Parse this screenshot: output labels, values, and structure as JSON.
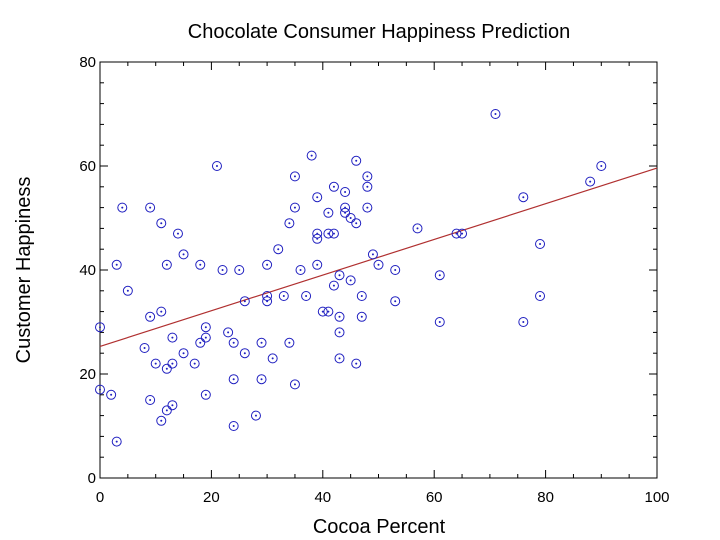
{
  "chart_data": {
    "type": "scatter",
    "title": "Chocolate Consumer Happiness Prediction",
    "xlabel": "Cocoa Percent",
    "ylabel": "Customer Happiness",
    "xlim": [
      0,
      100
    ],
    "ylim": [
      0,
      80
    ],
    "xticks": [
      0,
      20,
      40,
      60,
      80,
      100
    ],
    "yticks": [
      0,
      20,
      40,
      60,
      80
    ],
    "grid": false,
    "legend": "none",
    "series": [
      {
        "color": "#2020c0",
        "marker": "circle-dot",
        "points": [
          [
            0,
            29
          ],
          [
            0,
            17
          ],
          [
            2,
            16
          ],
          [
            3,
            41
          ],
          [
            3,
            7
          ],
          [
            4,
            52
          ],
          [
            5,
            36
          ],
          [
            8,
            25
          ],
          [
            9,
            52
          ],
          [
            9,
            31
          ],
          [
            9,
            15
          ],
          [
            10,
            22
          ],
          [
            11,
            49
          ],
          [
            11,
            32
          ],
          [
            11,
            11
          ],
          [
            12,
            41
          ],
          [
            12,
            21
          ],
          [
            12,
            13
          ],
          [
            13,
            27
          ],
          [
            13,
            22
          ],
          [
            13,
            14
          ],
          [
            14,
            47
          ],
          [
            15,
            43
          ],
          [
            15,
            24
          ],
          [
            17,
            22
          ],
          [
            18,
            41
          ],
          [
            18,
            26
          ],
          [
            19,
            29
          ],
          [
            19,
            27
          ],
          [
            19,
            16
          ],
          [
            21,
            60
          ],
          [
            22,
            40
          ],
          [
            23,
            28
          ],
          [
            24,
            26
          ],
          [
            24,
            19
          ],
          [
            24,
            10
          ],
          [
            25,
            40
          ],
          [
            26,
            34
          ],
          [
            26,
            24
          ],
          [
            28,
            12
          ],
          [
            29,
            26
          ],
          [
            29,
            19
          ],
          [
            30,
            41
          ],
          [
            30,
            35
          ],
          [
            30,
            34
          ],
          [
            31,
            23
          ],
          [
            32,
            44
          ],
          [
            33,
            35
          ],
          [
            34,
            49
          ],
          [
            34,
            26
          ],
          [
            35,
            58
          ],
          [
            35,
            52
          ],
          [
            35,
            18
          ],
          [
            36,
            40
          ],
          [
            37,
            35
          ],
          [
            38,
            62
          ],
          [
            39,
            54
          ],
          [
            39,
            47
          ],
          [
            39,
            46
          ],
          [
            39,
            41
          ],
          [
            40,
            32
          ],
          [
            41,
            51
          ],
          [
            41,
            47
          ],
          [
            41,
            32
          ],
          [
            42,
            56
          ],
          [
            42,
            47
          ],
          [
            42,
            37
          ],
          [
            43,
            39
          ],
          [
            43,
            31
          ],
          [
            43,
            28
          ],
          [
            43,
            23
          ],
          [
            44,
            55
          ],
          [
            44,
            52
          ],
          [
            44,
            51
          ],
          [
            45,
            50
          ],
          [
            45,
            38
          ],
          [
            46,
            61
          ],
          [
            46,
            49
          ],
          [
            46,
            22
          ],
          [
            47,
            35
          ],
          [
            47,
            31
          ],
          [
            48,
            58
          ],
          [
            48,
            56
          ],
          [
            48,
            52
          ],
          [
            49,
            43
          ],
          [
            50,
            41
          ],
          [
            53,
            40
          ],
          [
            53,
            34
          ],
          [
            57,
            48
          ],
          [
            61,
            39
          ],
          [
            61,
            30
          ],
          [
            64,
            47
          ],
          [
            65,
            47
          ],
          [
            71,
            70
          ],
          [
            76,
            54
          ],
          [
            76,
            30
          ],
          [
            79,
            45
          ],
          [
            79,
            35
          ],
          [
            88,
            57
          ],
          [
            90,
            60
          ]
        ]
      }
    ],
    "trendline": {
      "color": "#b03030",
      "x": [
        0,
        100
      ],
      "y": [
        25.3,
        59.6
      ]
    }
  }
}
